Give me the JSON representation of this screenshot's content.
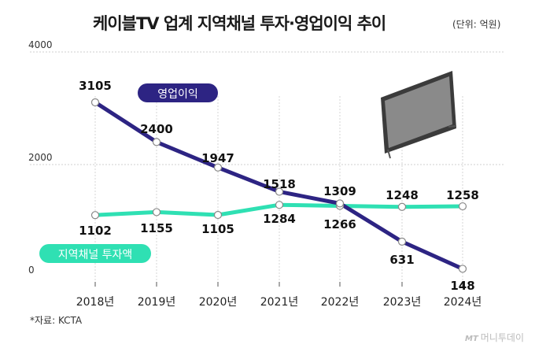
{
  "title": "케이블TV 업계 지역채널 투자·영업이익 추이",
  "unit": "(단위: 억원)",
  "source": "*자료: KCTA",
  "watermark": {
    "mark": "MT",
    "text": "머니투데이"
  },
  "colors": {
    "operating_profit": "#2d2483",
    "investment": "#2fe0b3",
    "grid": "#cfcfcf"
  },
  "chart_data": {
    "type": "line",
    "categories": [
      "2018년",
      "2019년",
      "2020년",
      "2021년",
      "2022년",
      "2023년",
      "2024년"
    ],
    "series": [
      {
        "name": "영업이익",
        "values": [
          3105,
          2400,
          1947,
          1518,
          1309,
          631,
          148
        ]
      },
      {
        "name": "지역채널 투자액",
        "values": [
          1102,
          1155,
          1105,
          1284,
          1266,
          1248,
          1258
        ]
      }
    ],
    "yticks": [
      "0",
      "2000",
      "4000"
    ],
    "ylim": [
      0,
      4000
    ],
    "grid": true,
    "decoration": "tv-icon"
  }
}
